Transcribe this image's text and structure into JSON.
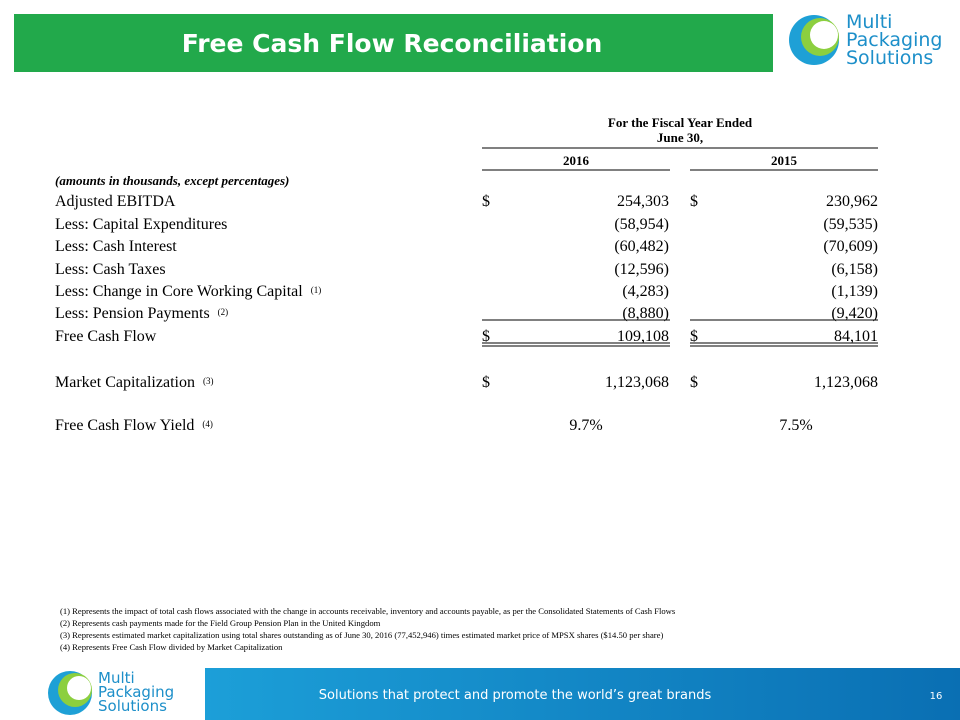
{
  "header": {
    "title": "Free Cash Flow Reconciliation",
    "logo": [
      "Multi",
      "Packaging",
      "Solutions"
    ]
  },
  "table": {
    "period_heading": [
      "For the Fiscal Year Ended",
      "June 30,"
    ],
    "columns": [
      "2016",
      "2015"
    ],
    "units_note": "(amounts in thousands, except percentages)",
    "rows": [
      {
        "label": "Adjusted EBITDA",
        "currency": [
          "$",
          "$"
        ],
        "values": [
          "254,303",
          "230,962"
        ]
      },
      {
        "label": "Less: Capital Expenditures",
        "values": [
          "(58,954)",
          "(59,535)"
        ]
      },
      {
        "label": "Less: Cash Interest",
        "values": [
          "(60,482)",
          "(70,609)"
        ]
      },
      {
        "label": "Less: Cash Taxes",
        "values": [
          "(12,596)",
          "(6,158)"
        ]
      },
      {
        "label": "Less: Change in Core Working Capital",
        "note": "(1)",
        "values": [
          "(4,283)",
          "(1,139)"
        ]
      },
      {
        "label": "Less: Pension Payments",
        "note": "(2)",
        "values": [
          "(8,880)",
          "(9,420)"
        ]
      },
      {
        "label": "Free Cash Flow",
        "currency": [
          "$",
          "$"
        ],
        "values": [
          "109,108",
          "84,101"
        ]
      },
      {
        "label": "Market Capitalization",
        "note": "(3)",
        "currency": [
          "$",
          "$"
        ],
        "values": [
          "1,123,068",
          "1,123,068"
        ]
      },
      {
        "label": "Free Cash Flow Yield",
        "note": "(4)",
        "values": [
          "9.7%",
          "7.5%"
        ],
        "centered": true
      }
    ]
  },
  "footnotes": [
    "(1) Represents the impact of total cash flows associated with the change in accounts receivable, inventory and accounts payable, as per the Consolidated Statements of Cash Flows",
    "(2) Represents cash payments made for the Field Group Pension Plan in the United Kingdom",
    "(3) Represents estimated market capitalization using total shares outstanding as of June 30, 2016 (77,452,946) times estimated  market price of MPSX shares ($14.50 per share)",
    "(4) Represents Free Cash Flow divided by Market Capitalization"
  ],
  "footer": {
    "tagline": "Solutions that protect and promote the world’s great brands",
    "page_number": "16",
    "logo": [
      "Multi",
      "Packaging",
      "Solutions"
    ]
  }
}
